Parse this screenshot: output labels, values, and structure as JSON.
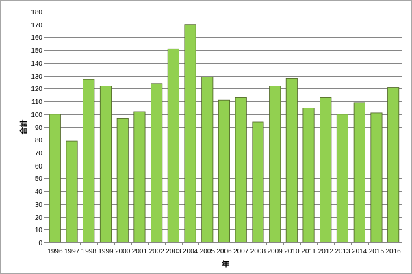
{
  "chart_data": {
    "type": "bar",
    "title": "",
    "xlabel": "年",
    "ylabel": "合計",
    "ylim": [
      0,
      180
    ],
    "ytick_step": 10,
    "grid": true,
    "bar_color": "#92d050",
    "bar_edge_color": "#4f6228",
    "grid_color": "#868686",
    "categories": [
      "1996",
      "1997",
      "1998",
      "1999",
      "2000",
      "2001",
      "2002",
      "2003",
      "2004",
      "2005",
      "2006",
      "2007",
      "2008",
      "2009",
      "2010",
      "2011",
      "2012",
      "2013",
      "2014",
      "2015",
      "2016"
    ],
    "values": [
      100,
      79,
      127,
      122,
      97,
      102,
      124,
      151,
      170,
      129,
      111,
      113,
      94,
      122,
      128,
      105,
      113,
      100,
      109,
      101,
      121
    ]
  }
}
